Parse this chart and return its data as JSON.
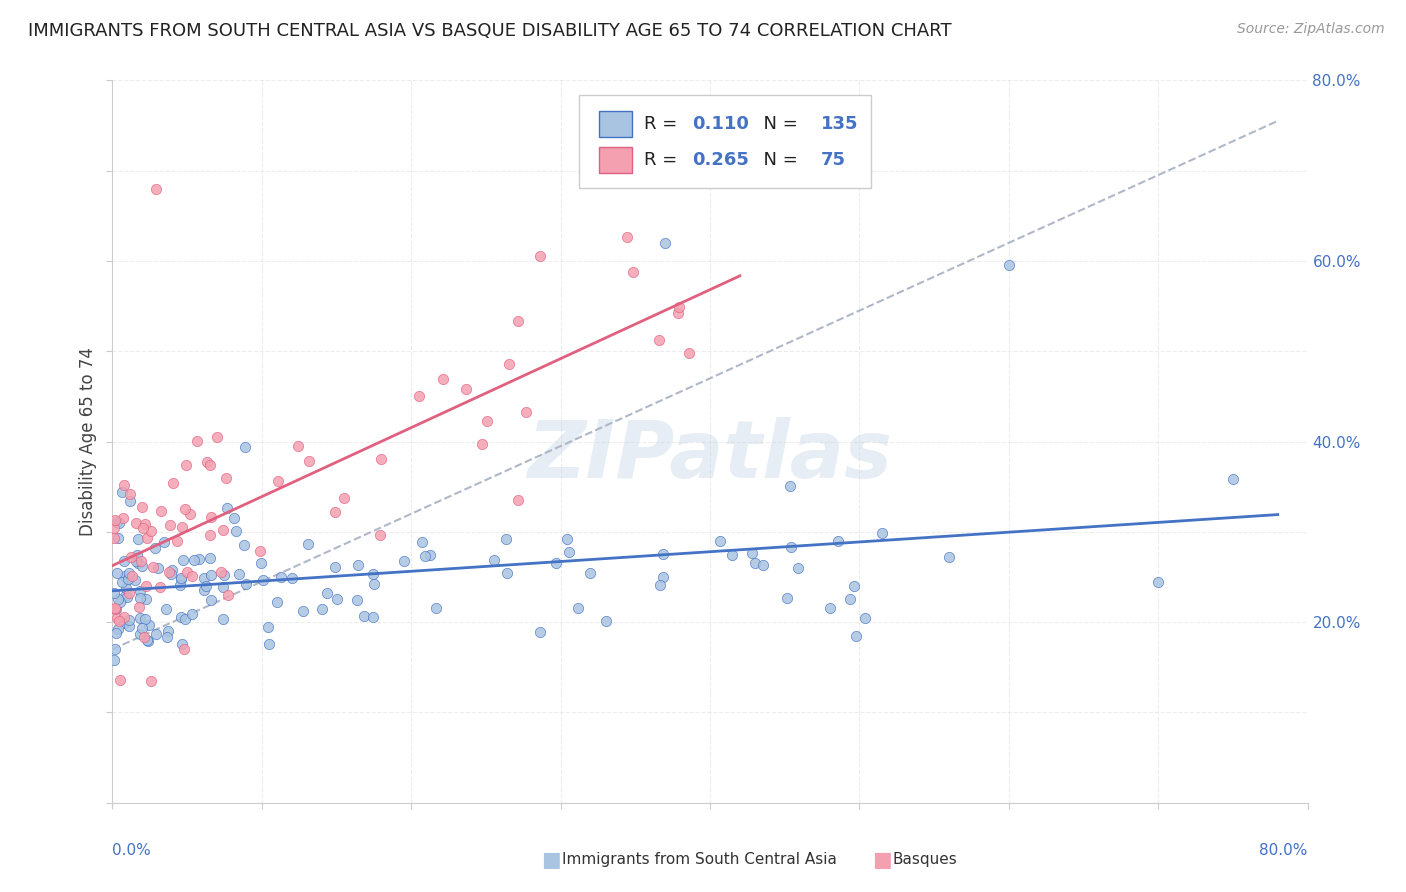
{
  "title": "IMMIGRANTS FROM SOUTH CENTRAL ASIA VS BASQUE DISABILITY AGE 65 TO 74 CORRELATION CHART",
  "source": "Source: ZipAtlas.com",
  "ylabel": "Disability Age 65 to 74",
  "xlim": [
    0.0,
    0.8
  ],
  "ylim": [
    0.0,
    0.8
  ],
  "blue_R": "0.110",
  "blue_N": "135",
  "pink_R": "0.265",
  "pink_N": "75",
  "blue_color": "#a8c4e0",
  "pink_color": "#f4a0b0",
  "blue_line_color": "#4472c4",
  "pink_line_color": "#e06080",
  "dash_line_color": "#b0b8c8",
  "background_color": "#ffffff",
  "legend_label_blue": "Immigrants from South Central Asia",
  "legend_label_pink": "Basques"
}
